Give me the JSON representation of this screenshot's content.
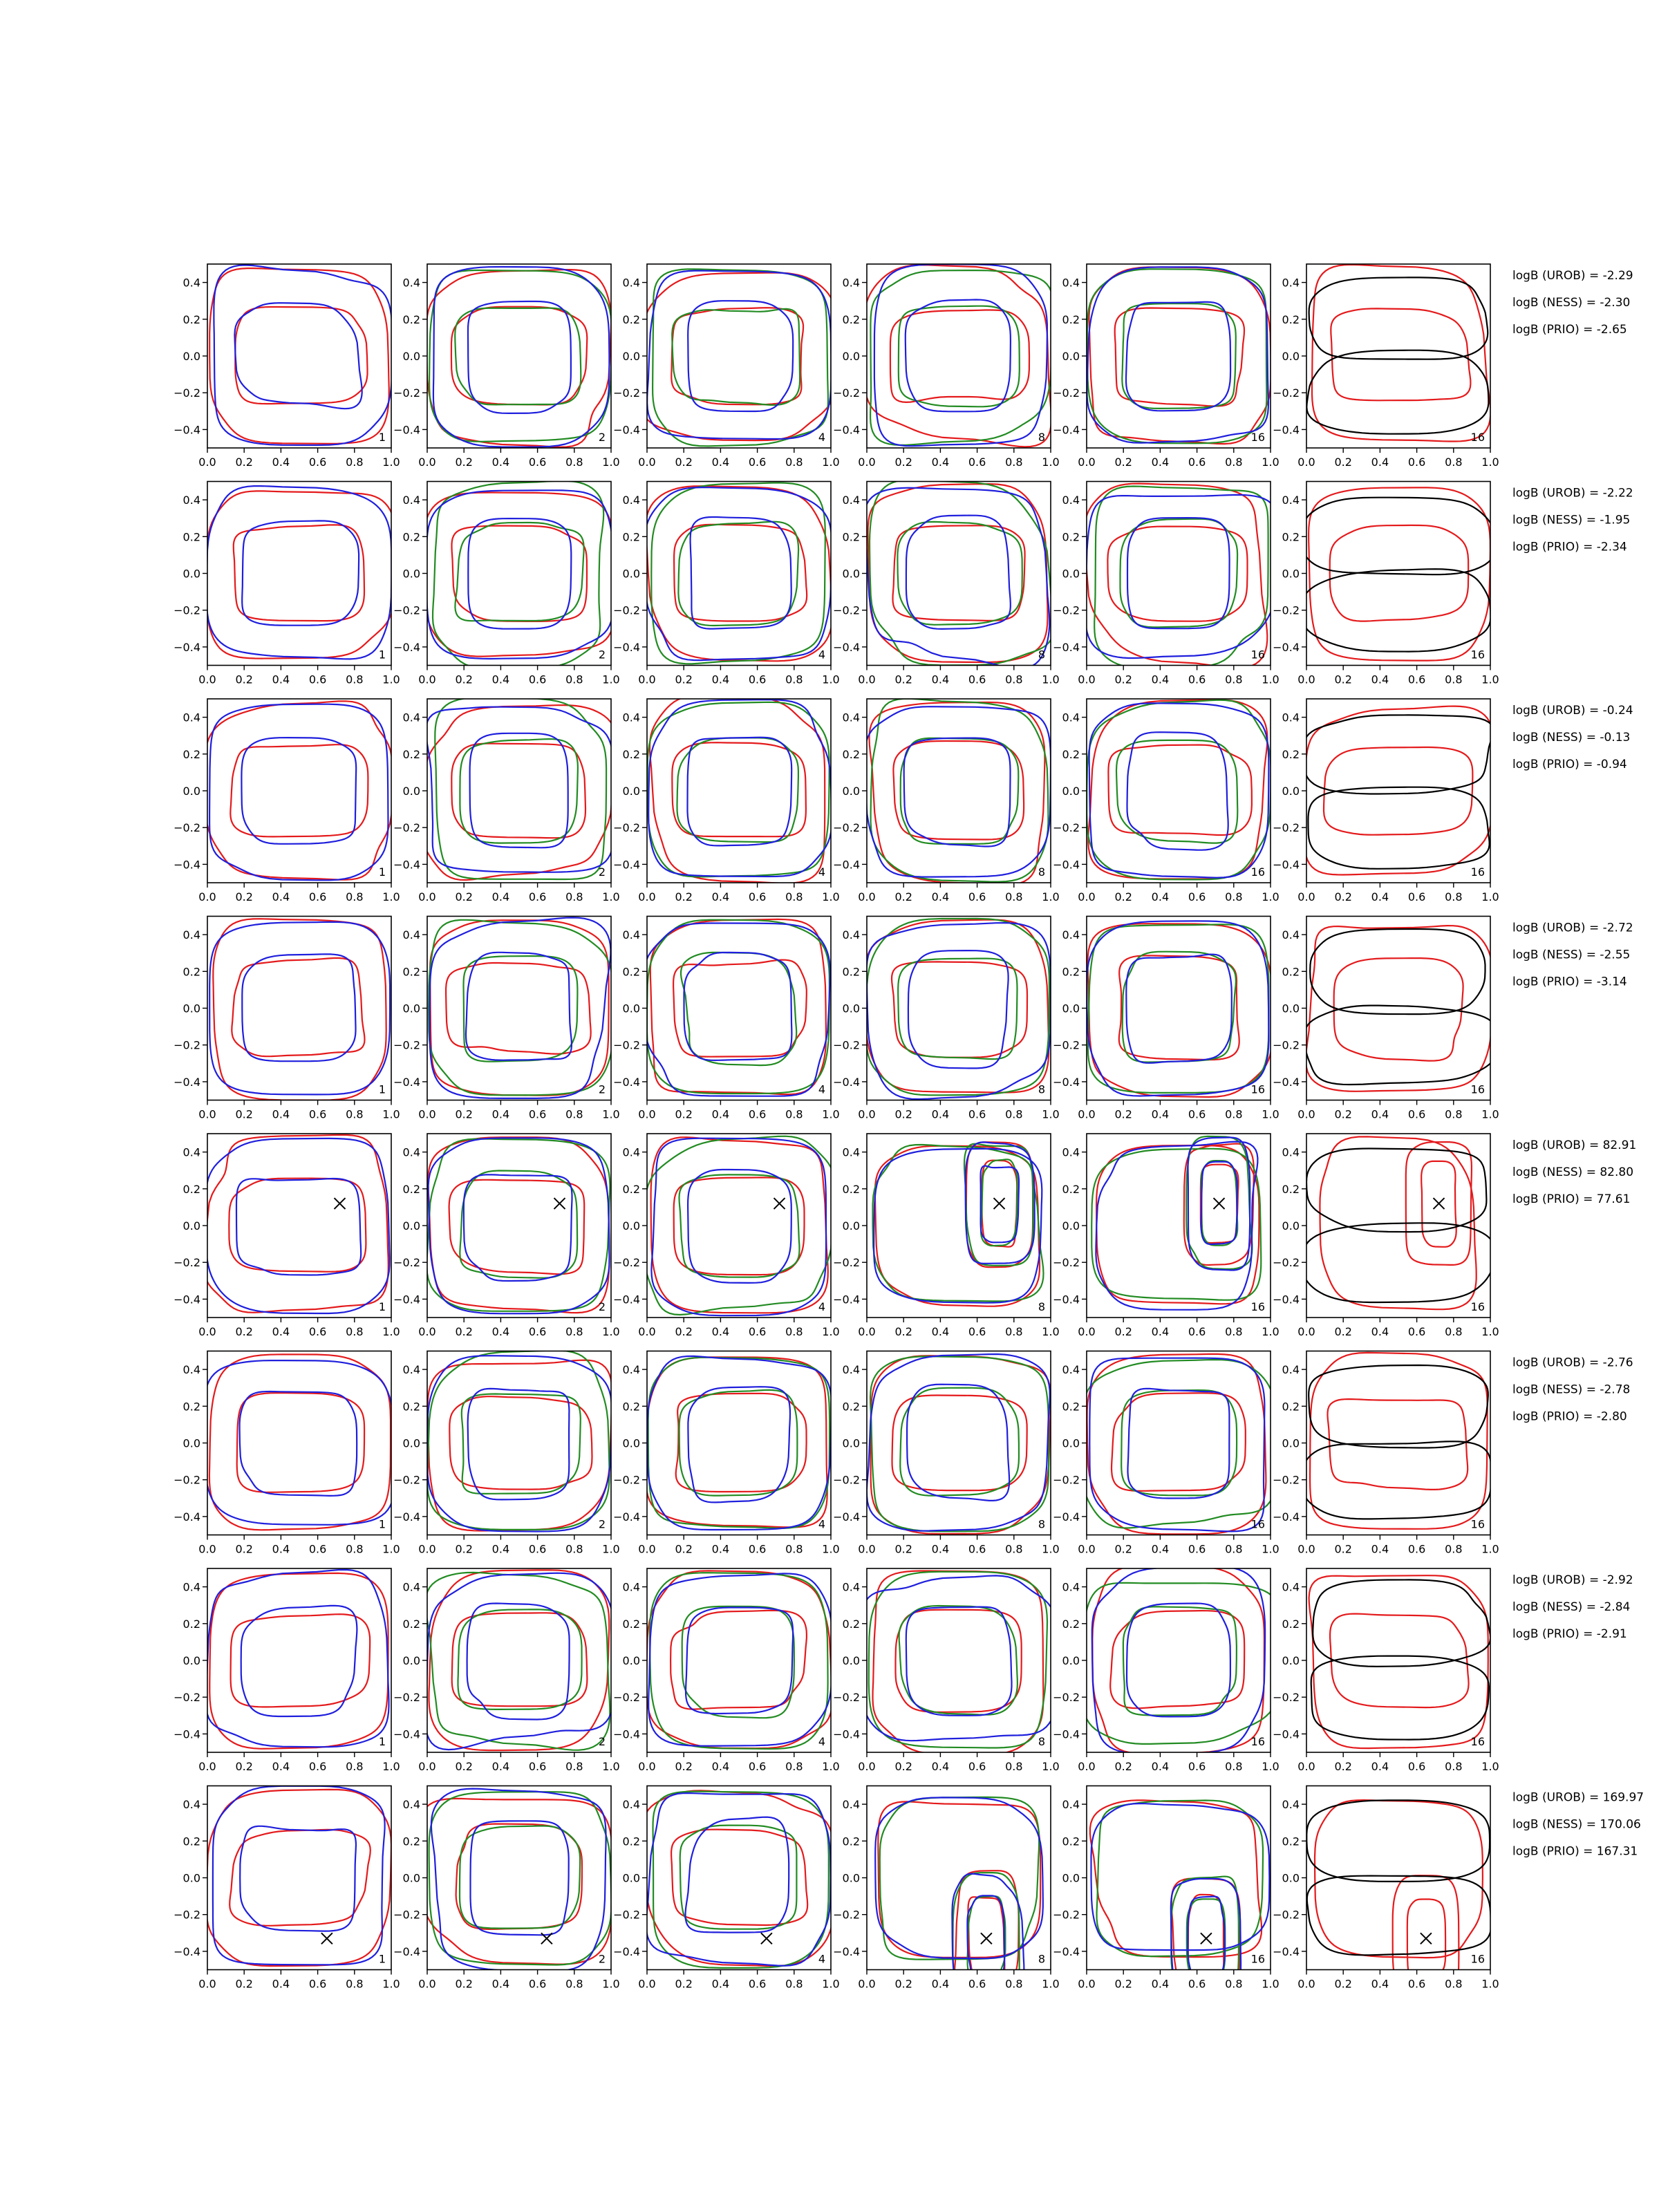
{
  "chart_data": {
    "type": "contour",
    "grid": {
      "rows": 8,
      "cols": 6
    },
    "xlim": [
      0.0,
      1.0
    ],
    "ylim": [
      -0.5,
      0.5
    ],
    "xticks": [
      "0.0",
      "0.2",
      "0.4",
      "0.6",
      "0.8",
      "1.0"
    ],
    "yticks": [
      "0.4",
      "0.2",
      "0.0",
      "−0.2",
      "−0.4"
    ],
    "ytick_values": [
      0.4,
      0.2,
      0.0,
      -0.2,
      -0.4
    ],
    "column_labels": [
      "1",
      "2",
      "4",
      "8",
      "16",
      "16"
    ],
    "column_series": [
      [
        "red",
        "blue"
      ],
      [
        "red",
        "green",
        "blue"
      ],
      [
        "red",
        "green",
        "blue"
      ],
      [
        "red",
        "green",
        "blue"
      ],
      [
        "red",
        "green",
        "blue"
      ],
      [
        "red",
        "black"
      ]
    ],
    "colors": {
      "red": "#e41a1c",
      "green": "#228b22",
      "blue": "#1f1fdd",
      "black": "#000000"
    },
    "rows": [
      {
        "bayes_factors": [
          "logB (UROB) = -2.29",
          "logB (NESS) = -2.30",
          "logB (PRIO) = -2.65"
        ],
        "marker": null
      },
      {
        "bayes_factors": [
          "logB (UROB) = -2.22",
          "logB (NESS) = -1.95",
          "logB (PRIO) = -2.34"
        ],
        "marker": null
      },
      {
        "bayes_factors": [
          "logB (UROB) = -0.24",
          "logB (NESS) = -0.13",
          "logB (PRIO) = -0.94"
        ],
        "marker": null
      },
      {
        "bayes_factors": [
          "logB (UROB) = -2.72",
          "logB (NESS) = -2.55",
          "logB (PRIO) = -3.14"
        ],
        "marker": null
      },
      {
        "bayes_factors": [
          "logB (UROB) = 82.91",
          "logB (NESS) = 82.80",
          "logB (PRIO) = 77.61"
        ],
        "marker": {
          "x": 0.72,
          "y": 0.12
        }
      },
      {
        "bayes_factors": [
          "logB (UROB) = -2.76",
          "logB (NESS) = -2.78",
          "logB (PRIO) = -2.80"
        ],
        "marker": null
      },
      {
        "bayes_factors": [
          "logB (UROB) = -2.92",
          "logB (NESS) = -2.84",
          "logB (PRIO) = -2.91"
        ],
        "marker": null
      },
      {
        "bayes_factors": [
          "logB (UROB) = 169.97",
          "logB (NESS) = 170.06",
          "logB (PRIO) = 167.31"
        ],
        "marker": {
          "x": 0.65,
          "y": -0.33
        }
      }
    ]
  }
}
